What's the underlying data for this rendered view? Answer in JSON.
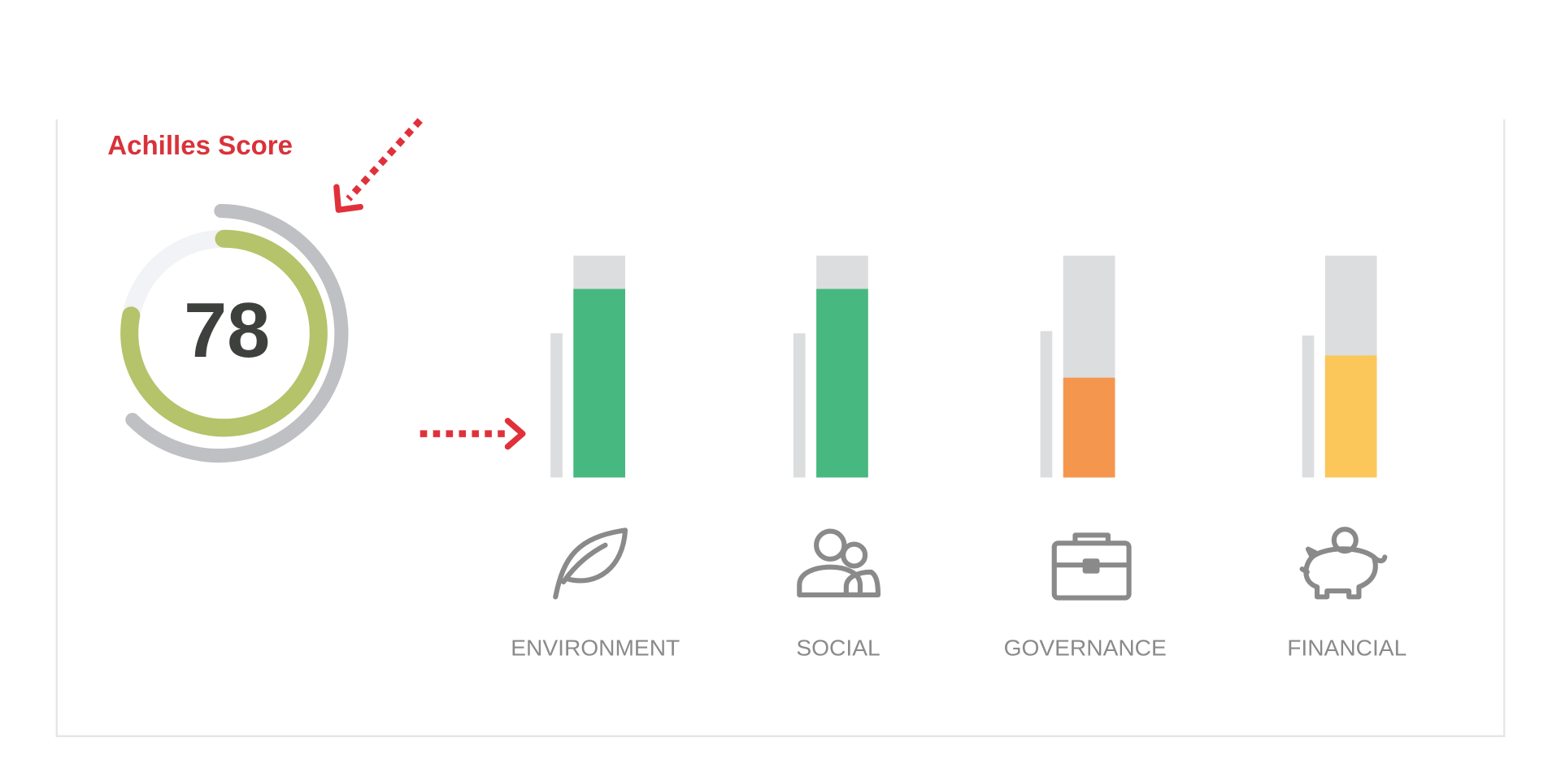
{
  "title": "Achilles Score",
  "score": 78,
  "gauge_lim": [
    0,
    100
  ],
  "ylim": [
    0,
    100
  ],
  "track_color": "#dcdddf",
  "categories": [
    {
      "label": "ENVIRONMENT",
      "value": 85,
      "benchmark": 65,
      "color": "#47b87f"
    },
    {
      "label": "SOCIAL",
      "value": 85,
      "benchmark": 65,
      "color": "#47b87f"
    },
    {
      "label": "GOVERNANCE",
      "value": 45,
      "benchmark": 66,
      "color": "#f5964f"
    },
    {
      "label": "FINANCIAL",
      "value": 55,
      "benchmark": 64,
      "color": "#fcc75a"
    }
  ]
}
